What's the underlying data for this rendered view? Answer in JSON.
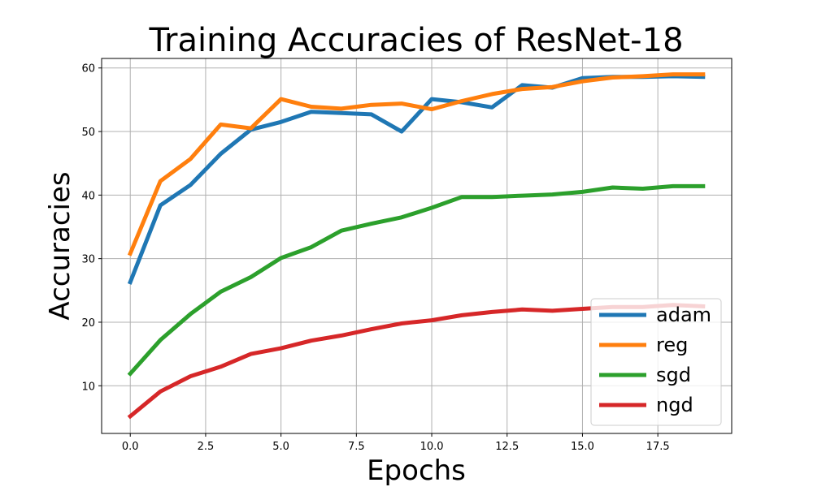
{
  "chart_data": {
    "type": "line",
    "title": "Training Accuracies of ResNet-18",
    "xlabel": "Epochs",
    "ylabel": "Accuracies",
    "xlim": [
      -0.95,
      19.95
    ],
    "ylim": [
      2.5,
      61.5
    ],
    "x_ticks": [
      "0.0",
      "2.5",
      "5.0",
      "7.5",
      "10.0",
      "12.5",
      "15.0",
      "17.5"
    ],
    "x_tick_values": [
      0,
      2.5,
      5,
      7.5,
      10,
      12.5,
      15,
      17.5
    ],
    "y_ticks": [
      "10",
      "20",
      "30",
      "40",
      "50",
      "60"
    ],
    "y_tick_values": [
      10,
      20,
      30,
      40,
      50,
      60
    ],
    "grid": true,
    "legend_position": "lower-right",
    "x": [
      0,
      1,
      2,
      3,
      4,
      5,
      6,
      7,
      8,
      9,
      10,
      11,
      12,
      13,
      14,
      15,
      16,
      17,
      18,
      19
    ],
    "series": [
      {
        "name": "adam",
        "color": "#1f77b4",
        "values": [
          26.3,
          38.4,
          41.6,
          46.5,
          50.3,
          51.5,
          53.1,
          52.9,
          52.7,
          50.0,
          55.1,
          54.6,
          53.8,
          57.3,
          56.9,
          58.4,
          58.6,
          58.6,
          58.7,
          58.6
        ]
      },
      {
        "name": "reg",
        "color": "#ff7f0e",
        "values": [
          30.8,
          42.2,
          45.7,
          51.1,
          50.5,
          55.1,
          53.9,
          53.6,
          54.2,
          54.4,
          53.5,
          54.8,
          55.9,
          56.7,
          57.0,
          57.9,
          58.5,
          58.7,
          59.0,
          59.0
        ]
      },
      {
        "name": "sgd",
        "color": "#2ca02c",
        "values": [
          11.9,
          17.2,
          21.3,
          24.8,
          27.1,
          30.1,
          31.8,
          34.4,
          35.5,
          36.5,
          38.0,
          39.7,
          39.7,
          39.9,
          40.1,
          40.5,
          41.2,
          41.0,
          41.4,
          41.4
        ]
      },
      {
        "name": "ngd",
        "color": "#d62728",
        "values": [
          5.2,
          9.1,
          11.5,
          13.0,
          15.0,
          15.9,
          17.1,
          17.9,
          18.9,
          19.8,
          20.3,
          21.1,
          21.6,
          22.0,
          21.8,
          22.1,
          22.4,
          22.4,
          22.7,
          22.5
        ]
      }
    ]
  }
}
